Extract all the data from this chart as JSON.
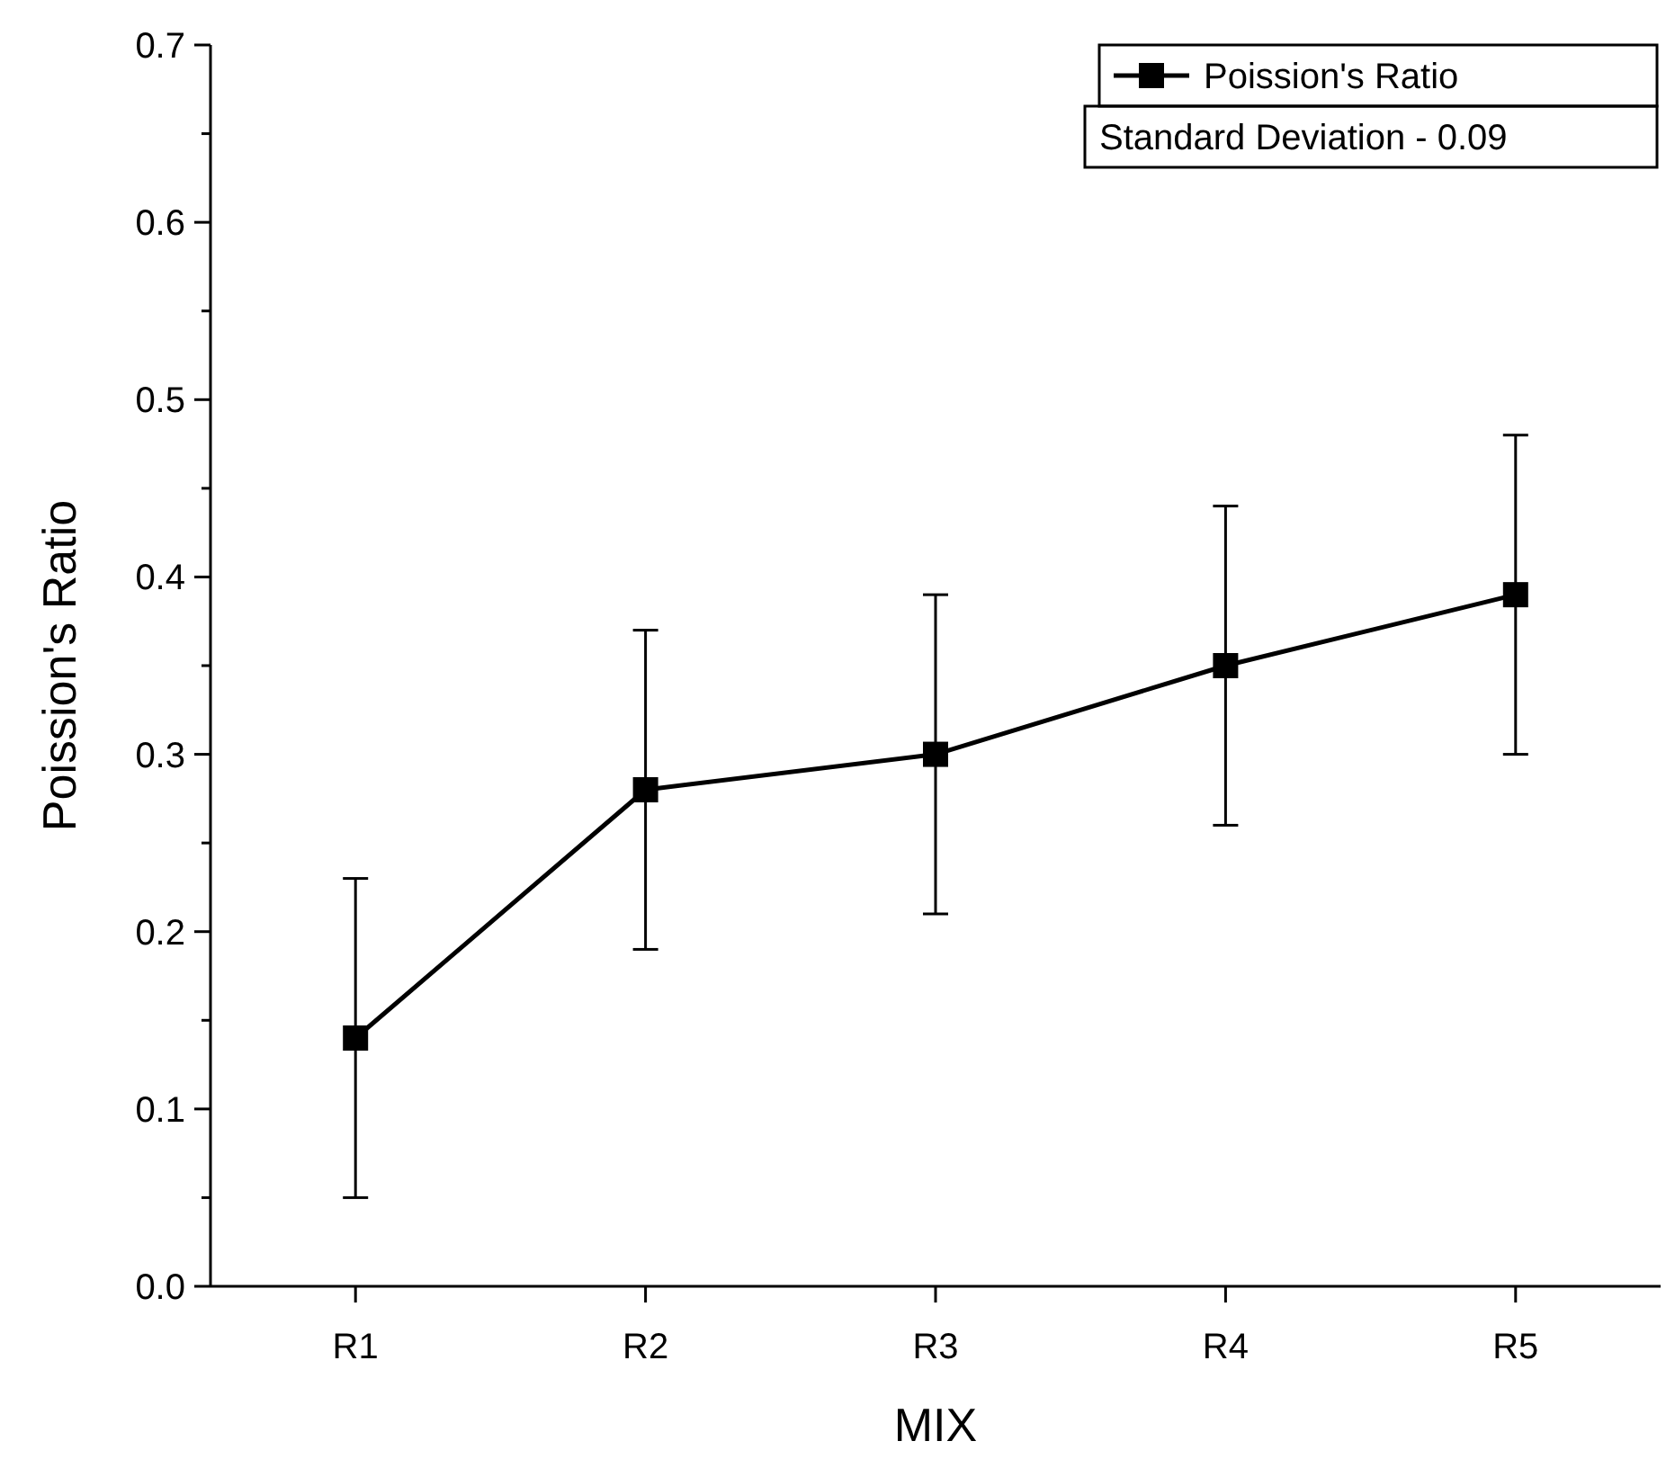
{
  "chart_data": {
    "type": "line",
    "xlabel": "MIX",
    "ylabel": "Poission's Ratio",
    "categories": [
      "R1",
      "R2",
      "R3",
      "R4",
      "R5"
    ],
    "series": [
      {
        "name": "Poission's Ratio",
        "color": "#000000",
        "values": [
          0.14,
          0.28,
          0.3,
          0.35,
          0.39
        ],
        "errors": [
          0.09,
          0.09,
          0.09,
          0.09,
          0.09
        ]
      }
    ],
    "ylim": [
      0,
      0.7
    ],
    "yticks": [
      {
        "value": 0,
        "label": "0.0"
      },
      {
        "value": 0.05,
        "label": null
      },
      {
        "value": 0.1,
        "label": "0.1"
      },
      {
        "value": 0.15,
        "label": null
      },
      {
        "value": 0.2,
        "label": "0.2"
      },
      {
        "value": 0.25,
        "label": null
      },
      {
        "value": 0.3,
        "label": "0.3"
      },
      {
        "value": 0.35,
        "label": null
      },
      {
        "value": 0.4,
        "label": "0.4"
      },
      {
        "value": 0.45,
        "label": null
      },
      {
        "value": 0.5,
        "label": "0.5"
      },
      {
        "value": 0.55,
        "label": null
      },
      {
        "value": 0.6,
        "label": "0.6"
      },
      {
        "value": 0.65,
        "label": null
      },
      {
        "value": 0.7,
        "label": "0.7"
      }
    ],
    "annotations": [
      "Standard Deviation - 0.09"
    ],
    "legend": "top right",
    "marker": "square",
    "line_style": "solid",
    "grid": false
  }
}
